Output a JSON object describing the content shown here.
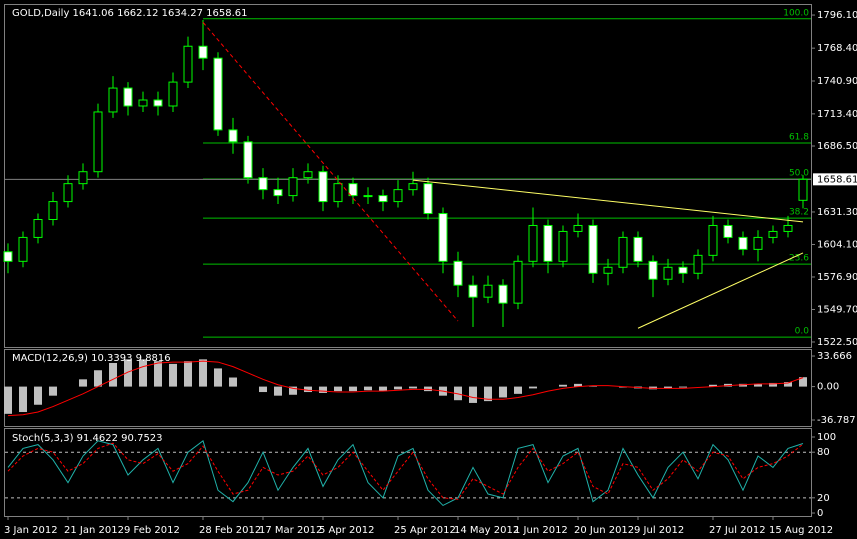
{
  "chart_data": [
    {
      "type": "candlestick",
      "title": "GOLD,Daily  1641.06 1662.12 1634.27 1658.61",
      "categories": [
        "3 Jan 2012",
        null,
        null,
        null,
        "21 Jan 2012",
        null,
        null,
        null,
        "9 Feb 2012",
        null,
        null,
        null,
        null,
        "28 Feb 2012",
        null,
        null,
        null,
        "17 Mar 2012",
        null,
        null,
        null,
        "5 Apr 2012",
        null,
        null,
        null,
        null,
        "25 Apr 2012",
        null,
        null,
        null,
        "14 May 2012",
        null,
        null,
        null,
        "1 Jun 2012",
        null,
        null,
        null,
        "20 Jun 2012",
        null,
        null,
        null,
        "9 Jul 2012",
        null,
        null,
        null,
        null,
        "27 Jul 2012",
        null,
        null,
        null,
        "15 Aug 2012",
        null,
        null
      ],
      "open": [
        1598,
        1590,
        1610,
        1625,
        1640,
        1655,
        1665,
        1715,
        1735,
        1720,
        1725,
        1720,
        1740,
        1770,
        1760,
        1700,
        1690,
        1660,
        1650,
        1645,
        1660,
        1665,
        1640,
        1655,
        1645,
        1645,
        1640,
        1650,
        1655,
        1630,
        1590,
        1570,
        1560,
        1570,
        1555,
        1590,
        1620,
        1590,
        1615,
        1620,
        1580,
        1585,
        1610,
        1590,
        1575,
        1585,
        1580,
        1595,
        1620,
        1610,
        1600,
        1610,
        1615,
        1641.06
      ],
      "high": [
        1605,
        1615,
        1630,
        1648,
        1662,
        1672,
        1722,
        1745,
        1740,
        1732,
        1732,
        1748,
        1778,
        1792,
        1765,
        1710,
        1695,
        1668,
        1660,
        1668,
        1672,
        1670,
        1662,
        1660,
        1652,
        1650,
        1658,
        1665,
        1660,
        1635,
        1598,
        1578,
        1578,
        1575,
        1595,
        1635,
        1625,
        1620,
        1630,
        1625,
        1592,
        1615,
        1615,
        1595,
        1592,
        1590,
        1600,
        1628,
        1625,
        1615,
        1616,
        1620,
        1628,
        1662.12
      ],
      "low": [
        1580,
        1585,
        1605,
        1620,
        1635,
        1650,
        1660,
        1710,
        1712,
        1715,
        1712,
        1715,
        1735,
        1750,
        1695,
        1680,
        1655,
        1642,
        1638,
        1640,
        1655,
        1632,
        1635,
        1638,
        1638,
        1632,
        1635,
        1645,
        1625,
        1580,
        1560,
        1535,
        1555,
        1535,
        1550,
        1585,
        1580,
        1585,
        1610,
        1572,
        1570,
        1580,
        1585,
        1560,
        1570,
        1572,
        1575,
        1590,
        1605,
        1595,
        1590,
        1605,
        1610,
        1634.27
      ],
      "close": [
        1590,
        1610,
        1625,
        1640,
        1655,
        1665,
        1715,
        1735,
        1720,
        1725,
        1720,
        1740,
        1770,
        1760,
        1700,
        1690,
        1660,
        1650,
        1645,
        1660,
        1665,
        1640,
        1655,
        1645,
        1645,
        1640,
        1650,
        1655,
        1630,
        1590,
        1570,
        1560,
        1570,
        1555,
        1590,
        1620,
        1590,
        1615,
        1620,
        1580,
        1585,
        1610,
        1590,
        1575,
        1585,
        1580,
        1595,
        1620,
        1610,
        1600,
        1610,
        1615,
        1620,
        1658.61
      ],
      "ylim": [
        1518.3,
        1802
      ],
      "yticks": [
        {
          "value": 1796.1,
          "label": "1796.10"
        },
        {
          "value": 1768.4,
          "label": "1768.40"
        },
        {
          "value": 1740.9,
          "label": "1740.90"
        },
        {
          "value": 1713.4,
          "label": "1713.40"
        },
        {
          "value": 1686.5,
          "label": "1686.50"
        },
        {
          "value": 1631.3,
          "label": "1631.30"
        },
        {
          "value": 1604.1,
          "label": "1604.10"
        },
        {
          "value": 1576.9,
          "label": "1576.90"
        },
        {
          "value": 1549.7,
          "label": "1549.70"
        },
        {
          "value": 1522.5,
          "label": "1522.50"
        }
      ],
      "last_price": 1658.61,
      "colors": {
        "wick": "#00ff00",
        "bull": "#000000",
        "bear": "#ffffff",
        "last_line": "#808080"
      },
      "fib": {
        "color": "#00c000",
        "levels": [
          {
            "label": "100.0",
            "price": 1793
          },
          {
            "label": "61.8",
            "price": 1689
          },
          {
            "label": "50.0",
            "price": 1658.9
          },
          {
            "label": "38.2",
            "price": 1626.2
          },
          {
            "label": "23.6",
            "price": 1587.7
          },
          {
            "label": "0.0",
            "price": 1526.6
          }
        ]
      },
      "trendlines": [
        {
          "color": "#ffff66",
          "points": [
            [
              27,
              1658
            ],
            [
              53,
              1623
            ]
          ]
        },
        {
          "color": "#ffff66",
          "points": [
            [
              42,
              1534
            ],
            [
              53,
              1597
            ]
          ]
        },
        {
          "color": "#ff0000",
          "dashed": true,
          "points": [
            [
              13,
              1790
            ],
            [
              30,
              1540
            ]
          ]
        }
      ]
    },
    {
      "type": "bar",
      "title": "MACD(12,26,9) 10.3393 9.8816",
      "values": [
        -30,
        -28,
        -20,
        -10,
        0,
        8,
        18,
        26,
        30,
        30,
        28,
        25,
        28,
        30,
        20,
        10,
        0,
        -6,
        -10,
        -9,
        -6,
        -7,
        -5,
        -5,
        -4,
        -5,
        -3,
        -2,
        -5,
        -10,
        -15,
        -18,
        -16,
        -12,
        -8,
        -2,
        0,
        2,
        3,
        1,
        0,
        -1,
        -2,
        -3,
        -2,
        -1,
        0,
        2,
        3,
        3,
        3,
        4,
        5,
        10.34
      ],
      "signal": [
        -32,
        -31,
        -28,
        -22,
        -15,
        -8,
        0,
        8,
        16,
        22,
        26,
        27,
        27,
        28,
        27,
        22,
        15,
        8,
        2,
        -2,
        -4,
        -5,
        -6,
        -6,
        -5,
        -5,
        -4,
        -3,
        -3,
        -5,
        -8,
        -12,
        -14,
        -14,
        -12,
        -9,
        -5,
        -2,
        0,
        1,
        1,
        0,
        -1,
        -2,
        -2,
        -2,
        -1,
        0,
        1,
        2,
        3,
        3,
        4,
        9.88
      ],
      "ylim": [
        -42.3,
        40.3
      ],
      "yticks": [
        33.666,
        {
          "value": 0,
          "label": "0.00"
        },
        -36.787
      ],
      "color": "#c0c0c0",
      "signal_color": "#ff0000"
    },
    {
      "type": "line",
      "title": "Stoch(5,3,3) 91.4622 90.7523",
      "main": [
        60,
        85,
        90,
        70,
        40,
        75,
        95,
        90,
        50,
        70,
        85,
        40,
        80,
        95,
        30,
        15,
        40,
        80,
        30,
        60,
        85,
        35,
        70,
        90,
        40,
        20,
        75,
        85,
        30,
        10,
        20,
        60,
        25,
        20,
        85,
        90,
        40,
        75,
        85,
        15,
        30,
        85,
        50,
        20,
        60,
        80,
        45,
        90,
        70,
        30,
        75,
        60,
        85,
        91.46
      ],
      "signal": [
        55,
        75,
        85,
        80,
        55,
        65,
        85,
        92,
        70,
        65,
        78,
        55,
        65,
        88,
        55,
        25,
        30,
        60,
        50,
        55,
        75,
        50,
        60,
        80,
        55,
        30,
        55,
        80,
        45,
        20,
        18,
        45,
        35,
        25,
        60,
        85,
        55,
        65,
        80,
        35,
        25,
        65,
        60,
        30,
        45,
        70,
        55,
        80,
        75,
        45,
        60,
        65,
        75,
        90.75
      ],
      "ylim": [
        -2.6,
        109.2
      ],
      "yticks": [
        100,
        80,
        20,
        0
      ],
      "levels": [
        80,
        20
      ],
      "color": "#20b2aa",
      "signal_color": "#ff0000"
    }
  ]
}
